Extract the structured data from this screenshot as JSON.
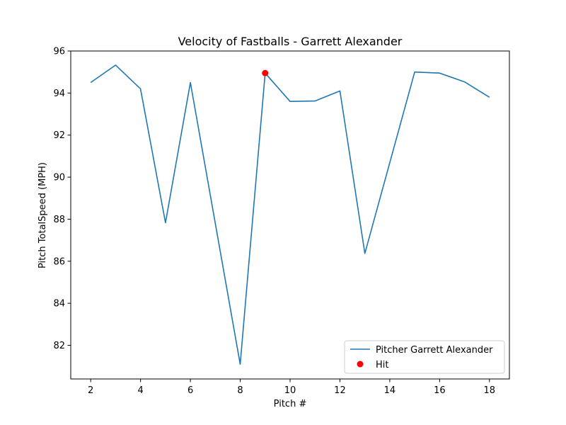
{
  "chart_data": {
    "type": "line",
    "title": "Velocity of Fastballs - Garrett Alexander",
    "xlabel": "Pitch #",
    "ylabel": "Pitch TotalSpeed (MPH)",
    "xlim": [
      1.2,
      18.8
    ],
    "ylim": [
      80.4,
      96.0
    ],
    "xticks": [
      2,
      4,
      6,
      8,
      10,
      12,
      14,
      16,
      18
    ],
    "yticks": [
      82,
      84,
      86,
      88,
      90,
      92,
      94,
      96
    ],
    "grid": false,
    "legend_position": "lower-right",
    "series": [
      {
        "name": "Pitcher Garrett Alexander",
        "kind": "line",
        "color": "#1f77b4",
        "x": [
          2,
          3,
          4,
          5,
          6,
          8,
          9,
          10,
          11,
          12,
          13,
          15,
          16,
          17,
          18
        ],
        "y": [
          94.5,
          95.33,
          94.2,
          87.83,
          94.5,
          81.1,
          94.95,
          93.6,
          93.62,
          94.1,
          86.37,
          95.0,
          94.95,
          94.53,
          93.8
        ]
      },
      {
        "name": "Hit",
        "kind": "scatter",
        "color": "#ff0000",
        "x": [
          9
        ],
        "y": [
          94.95
        ]
      }
    ]
  }
}
